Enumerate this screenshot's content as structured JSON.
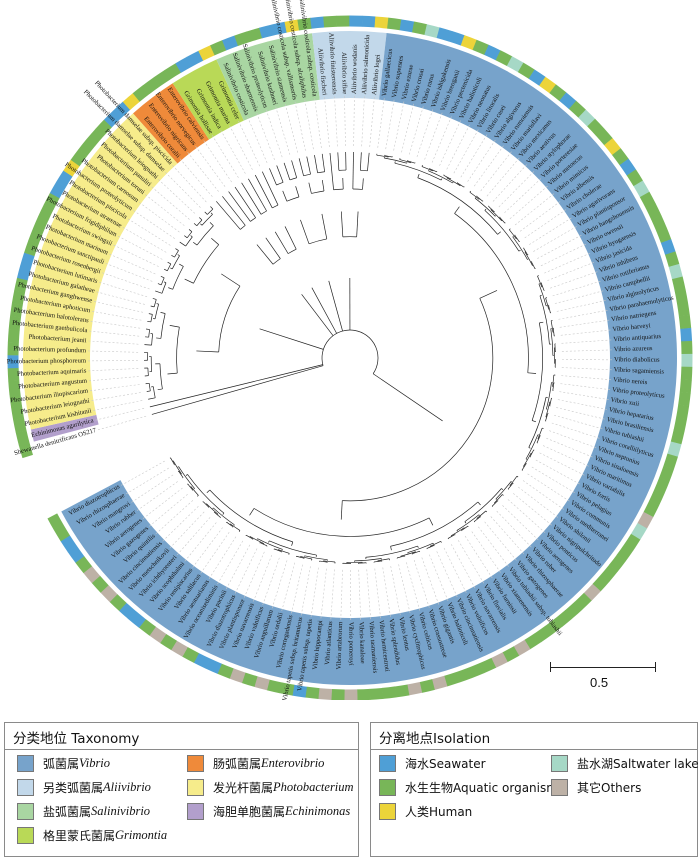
{
  "taxonomy_legend": {
    "title": "分类地位 Taxonomy",
    "items": [
      {
        "key": "vibrio",
        "cn": "弧菌属",
        "lat": "Vibrio",
        "color": "#77a3cb"
      },
      {
        "key": "enterovibrio",
        "cn": "肠弧菌属",
        "lat": "Enterovibrio",
        "color": "#ef8a3a"
      },
      {
        "key": "aliivibrio",
        "cn": "另类弧菌属",
        "lat": "Aliivibrio",
        "color": "#c2d8ea"
      },
      {
        "key": "photobacterium",
        "cn": "发光杆菌属",
        "lat": "Photobacterium",
        "color": "#f6ec8b"
      },
      {
        "key": "salinivibrio",
        "cn": "盐弧菌属",
        "lat": "Salinivibrio",
        "color": "#a9d6a2"
      },
      {
        "key": "echinimonas",
        "cn": "海胆单胞菌属",
        "lat": "Echinimonas",
        "color": "#b29fcc"
      },
      {
        "key": "grimontia",
        "cn": "格里蒙氏菌属",
        "lat": "Grimontia",
        "color": "#b9d957"
      }
    ]
  },
  "isolation_legend": {
    "title": "分离地点Isolation",
    "items": [
      {
        "key": "seawater",
        "label": "海水Seawater",
        "color": "#4f9fd6"
      },
      {
        "key": "saltwater",
        "label": "盐水湖Saltwater lake",
        "color": "#a6d8c6"
      },
      {
        "key": "aquatic",
        "label": "水生生物Aquatic organism",
        "color": "#78b658"
      },
      {
        "key": "others",
        "label": "其它Others",
        "color": "#bdb1a6"
      },
      {
        "key": "human",
        "label": "人类Human",
        "color": "#ecd43a"
      }
    ]
  },
  "scale_bar": {
    "label": "0.5"
  },
  "tree": {
    "clades": [
      {
        "genus": "shewanella",
        "labels": [
          "Shewanella denitrificans OS217"
        ]
      },
      {
        "genus": "echinimonas",
        "labels": [
          "Echinimonas agarilytica"
        ]
      },
      {
        "genus": "photobacterium",
        "labels": [
          "Photobacterium kishitanii",
          "Photobacterium leiognathi",
          "Photobacterium iliopiscarium",
          "Photobacterium angustum",
          "Photobacterium aquimaris",
          "Photobacterium phosphoreum",
          "Photobacterium profundum",
          "Photobacterium jeanii",
          "Photobacterium gaetbulicola",
          "Photobacterium halotolerans",
          "Photobacterium aphoticum",
          "Photobacterium ganghwense",
          "Photobacterium galatheae",
          "Photobacterium lutimaris",
          "Photobacterium rosenbergii",
          "Photobacterium sanctipauli",
          "Photobacterium marinum",
          "Photobacterium swingsii",
          "Photobacterium frigidiphilum",
          "Photobacterium atrarenae",
          "Photobacterium piscicola",
          "Photobacterium proteolyticum",
          "Photobacterium carnosum",
          "Photobacterium toruni",
          "Photobacterium panuliri",
          "Photobacterium leiognathi",
          "Photobacterium damselae subsp. damselae",
          "Photobacterium damselae subsp. piscicida"
        ]
      },
      {
        "genus": "enterovibrio",
        "labels": [
          "Enterovibrio coralii",
          "Enterovibrio nigricans",
          "Enterovibrio norvegicus",
          "Enterovibrio calviensis"
        ]
      },
      {
        "genus": "grimontia",
        "labels": [
          "Grimontia hollisae",
          "Grimontia indica",
          "Grimontia marina",
          "Grimontia celer"
        ]
      },
      {
        "genus": "salinivibrio",
        "labels": [
          "Salinivibrio costicola",
          "Salinivibrio sharmensis",
          "Salinivibrio proteolyticus",
          "Salinivibrio kushneri",
          "Salinivibrio siamensis",
          "Salinivibrio costicola subsp. vallismortis",
          "Salinivibrio costicola subsp. alcaliphilus",
          "Salinivibrio costicola subsp. costicola"
        ]
      },
      {
        "genus": "aliivibrio",
        "labels": [
          "Aliivibrio fischeri",
          "Aliivibrio finisterrensis",
          "Aliivibrio sifiae",
          "Aliivibrio wodanis",
          "Aliivibrio salmonicida",
          "Aliivibrio logei"
        ]
      },
      {
        "genus": "vibrio",
        "labels": [
          "Vibrio gallaecicus",
          "Vibrio superstes",
          "Vibrio ezurae",
          "Vibrio crosai",
          "Vibrio rarus",
          "Vibrio ishigakensis",
          "Vibrio breoganii",
          "Vibrio pectenicida",
          "Vibrio halioticoli",
          "Vibrio neonatus",
          "Vibrio litoralis",
          "Vibrio casei",
          "Vibrio algivorus",
          "Vibrio rumoiensis",
          "Vibrio marisflavi",
          "Vibrio mexicanus",
          "Vibrio aestivus",
          "Vibrio stylophorae",
          "Vibrio porteresiae",
          "Vibrio metoecus",
          "Vibrio mimicus",
          "Vibrio albensis",
          "Vibrio cholerae",
          "Vibrio agarivorans",
          "Vibrio plantisponsor",
          "Vibrio hangzhouensis",
          "Vibrio owensii",
          "Vibrio hyugaensis",
          "Vibrio jasicida",
          "Vibrio inhibens",
          "Vibrio rotiferianus",
          "Vibrio campbellii",
          "Vibrio alginolyticus",
          "Vibrio parahaemolyticus",
          "Vibrio natriegens",
          "Vibrio harveyi",
          "Vibrio antiquarius",
          "Vibrio azureus",
          "Vibrio diabolicus",
          "Vibrio sagamiensis",
          "Vibrio nereis",
          "Vibrio proteolyticus",
          "Vibrio xuii",
          "Vibrio hepatarius",
          "Vibrio brasiliensis",
          "Vibrio tubiashii",
          "Vibrio coralliilyticus",
          "Vibrio neptunius",
          "Vibrio sinaloensis",
          "Vibrio maritimus",
          "Vibrio variabilis",
          "Vibrio fortis",
          "Vibrio pelagius",
          "Vibrio communis",
          "Vibrio mediterranei",
          "Vibrio shilonii",
          "Vibrio nigripulchritudo",
          "Vibrio ponticus",
          "Vibrio aerogenes",
          "Vibrio ruber",
          "Vibrio rhizosphaerae",
          "Vibrio gazogenes",
          "Vibrio tubiashii subsp. tubiashii",
          "Vibrio xiamenensis",
          "Vibrio furnissii",
          "Vibrio fluvialis",
          "Vibrio navarrensis",
          "Vibrio vulnificus",
          "Vibrio cincinnatiensis",
          "Vibrio halioticoli",
          "Vibrio gigantis",
          "Vibrio crassostreae",
          "Vibrio celticus",
          "Vibrio cyclitrophicus",
          "Vibrio lentus",
          "Vibrio splendidus",
          "Vibrio hemicentroti",
          "Vibrio tasmaniensis",
          "Vibrio kanaloae",
          "Vibrio pomeroyi",
          "Vibrio artabrorum",
          "Vibrio atlanticus",
          "Vibrio hippocampi",
          "Vibrio tapetis subsp. tapetis",
          "Vibrio tapetis subsp. britannicus",
          "Vibrio cortegadensis",
          "Vibrio ordalii",
          "Vibrio anguillarum",
          "Vibrio vulnificus",
          "Vibrio navarrensis",
          "Vibrio plantisponsor",
          "Vibrio diazotrophicus",
          "Vibrio pacinii",
          "Vibrio oceanisediminis",
          "Vibrio aestuarianus",
          "Vibrio salilacus",
          "Vibrio renipiscarius",
          "Vibrio scophthalmi",
          "Vibrio ichthyoenteri",
          "Vibrio metschnikovii",
          "Vibrio cincinnatiensis",
          "Vibrio quintilis",
          "Vibrio gazogenes",
          "Vibrio aerogenes",
          "Vibrio rubber",
          "Vibrio mangrovi",
          "Vibrio rhizosphaerae",
          "Vibrio diazotrophicus"
        ]
      }
    ]
  }
}
